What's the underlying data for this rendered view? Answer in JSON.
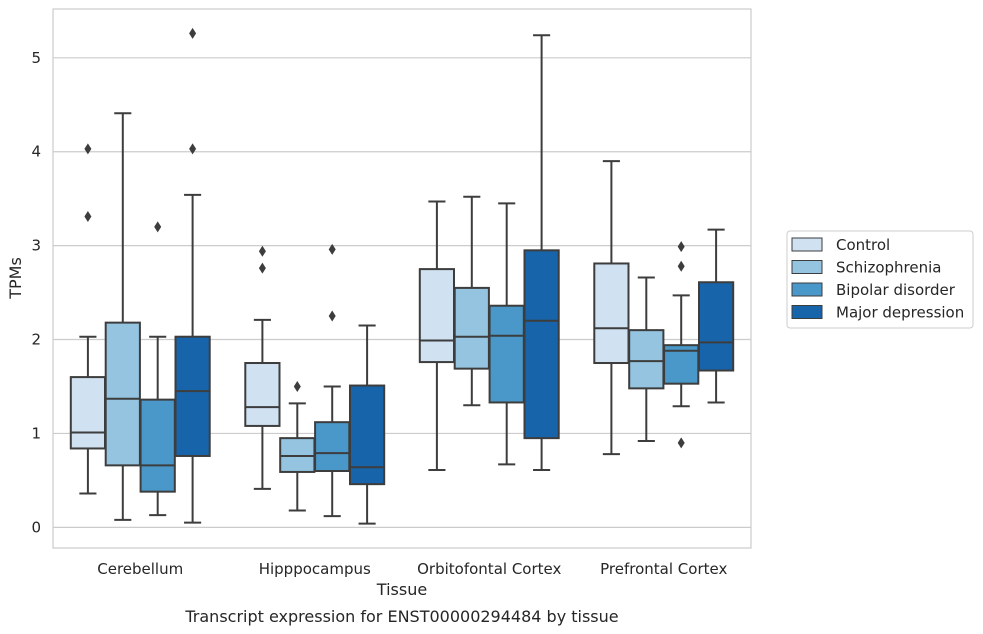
{
  "caption": "Transcript expression for ENST00000294484 by tissue",
  "chart_data": {
    "type": "box",
    "xlabel": "Tissue",
    "ylabel": "TPMs",
    "ylim": [
      -0.22,
      5.52
    ],
    "yticks": [
      0,
      1,
      2,
      3,
      4,
      5
    ],
    "grid": "horizontal",
    "legend_position": "right",
    "categories": [
      "Cerebellum",
      "Hipppocampus",
      "Orbitofontal Cortex",
      "Prefrontal Cortex"
    ],
    "series": [
      {
        "name": "Control",
        "color": "#d0e1f2",
        "boxes": [
          {
            "whislo": 0.36,
            "q1": 0.84,
            "med": 1.01,
            "q3": 1.6,
            "whishi": 2.03,
            "fliers": [
              3.31,
              4.03
            ]
          },
          {
            "whislo": 0.41,
            "q1": 1.08,
            "med": 1.28,
            "q3": 1.75,
            "whishi": 2.21,
            "fliers": [
              2.76,
              2.94
            ]
          },
          {
            "whislo": 0.61,
            "q1": 1.76,
            "med": 1.99,
            "q3": 2.75,
            "whishi": 3.47,
            "fliers": []
          },
          {
            "whislo": 0.78,
            "q1": 1.75,
            "med": 2.12,
            "q3": 2.81,
            "whishi": 3.9,
            "fliers": []
          }
        ]
      },
      {
        "name": "Schizophrenia",
        "color": "#94c4df",
        "boxes": [
          {
            "whislo": 0.08,
            "q1": 0.66,
            "med": 1.37,
            "q3": 2.18,
            "whishi": 4.41,
            "fliers": []
          },
          {
            "whislo": 0.18,
            "q1": 0.59,
            "med": 0.76,
            "q3": 0.95,
            "whishi": 1.32,
            "fliers": [
              1.5
            ]
          },
          {
            "whislo": 1.3,
            "q1": 1.69,
            "med": 2.03,
            "q3": 2.55,
            "whishi": 3.52,
            "fliers": []
          },
          {
            "whislo": 0.92,
            "q1": 1.48,
            "med": 1.77,
            "q3": 2.1,
            "whishi": 2.66,
            "fliers": []
          }
        ]
      },
      {
        "name": "Bipolar disorder",
        "color": "#4a98c9",
        "boxes": [
          {
            "whislo": 0.13,
            "q1": 0.38,
            "med": 0.66,
            "q3": 1.36,
            "whishi": 2.03,
            "fliers": [
              3.2
            ]
          },
          {
            "whislo": 0.12,
            "q1": 0.6,
            "med": 0.79,
            "q3": 1.12,
            "whishi": 1.5,
            "fliers": [
              2.25,
              2.96
            ]
          },
          {
            "whislo": 0.67,
            "q1": 1.33,
            "med": 2.04,
            "q3": 2.36,
            "whishi": 3.45,
            "fliers": []
          },
          {
            "whislo": 1.29,
            "q1": 1.53,
            "med": 1.88,
            "q3": 1.94,
            "whishi": 2.47,
            "fliers": [
              0.9,
              2.78,
              2.99
            ]
          }
        ]
      },
      {
        "name": "Major depression",
        "color": "#1764ab",
        "boxes": [
          {
            "whislo": 0.05,
            "q1": 0.76,
            "med": 1.45,
            "q3": 2.03,
            "whishi": 3.54,
            "fliers": [
              4.03,
              5.26
            ]
          },
          {
            "whislo": 0.04,
            "q1": 0.46,
            "med": 0.64,
            "q3": 1.51,
            "whishi": 2.15,
            "fliers": []
          },
          {
            "whislo": 0.61,
            "q1": 0.95,
            "med": 2.2,
            "q3": 2.95,
            "whishi": 5.24,
            "fliers": []
          },
          {
            "whislo": 1.33,
            "q1": 1.67,
            "med": 1.97,
            "q3": 2.61,
            "whishi": 3.17,
            "fliers": []
          }
        ]
      }
    ]
  }
}
